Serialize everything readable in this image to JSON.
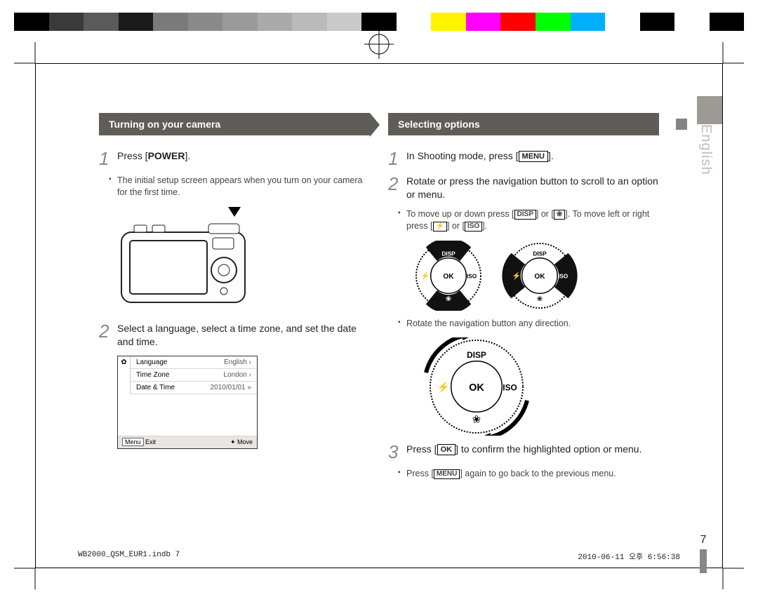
{
  "colorStrip": [
    "#000000",
    "#3a3a3a",
    "#5a5a5a",
    "#1a1a1a",
    "#7a7a7a",
    "#8a8a8a",
    "#9a9a9a",
    "#aaaaaa",
    "#bababa",
    "#cacaca",
    "#000000",
    "#ffffff",
    "#fff400",
    "#ff00ff",
    "#ff0000",
    "#00ff00",
    "#00b0ff",
    "#ffffff",
    "#000000",
    "#ffffff",
    "#000000"
  ],
  "sideLabel": "English",
  "pageNumber": "7",
  "left": {
    "heading": "Turning on your camera",
    "step1_prefix": "Press [",
    "step1_btn": "POWER",
    "step1_suffix": "].",
    "step1_sub": "The initial setup screen appears when you turn on your camera for the first time.",
    "step2": "Select a language, select a time zone, and set the date and time.",
    "settings": {
      "rows": [
        {
          "k": "Language",
          "v": "English ›"
        },
        {
          "k": "Time Zone",
          "v": "London ›"
        },
        {
          "k": "Date & Time",
          "v": "2010/01/01 »"
        }
      ],
      "footerLeft": "Menu",
      "footerExit": "Exit",
      "footerMove": "Move"
    }
  },
  "right": {
    "heading": "Selecting options",
    "step1_a": "In Shooting mode, press [",
    "step1_btn": "MENU",
    "step1_b": "].",
    "step2": "Rotate or press the navigation button to scroll to an option or menu.",
    "step2_sub_a": "To move up or down press [",
    "step2_sub_disp": "DISP",
    "step2_sub_b": "] or [",
    "step2_sub_flower": "❀",
    "step2_sub_c": "]. To move left or right press [",
    "step2_sub_flash": "⚡",
    "step2_sub_d": "] or [",
    "step2_sub_iso": "ISO",
    "step2_sub_e": "].",
    "step2_sub2": "Rotate the navigation button any direction.",
    "wheel": {
      "top": "DISP",
      "left": "⚡",
      "center": "OK",
      "right": "ISO",
      "bottom": "❀"
    },
    "step3_a": "Press [",
    "step3_btn": "OK",
    "step3_b": "] to confirm the highlighted option or menu.",
    "step3_sub_a": "Press [",
    "step3_sub_btn": "MENU",
    "step3_sub_b": "] again to go back to the previous menu."
  },
  "footer": {
    "left": "WB2000_QSM_EUR1.indb   7",
    "right": "2010-06-11   오후 6:56:38"
  }
}
